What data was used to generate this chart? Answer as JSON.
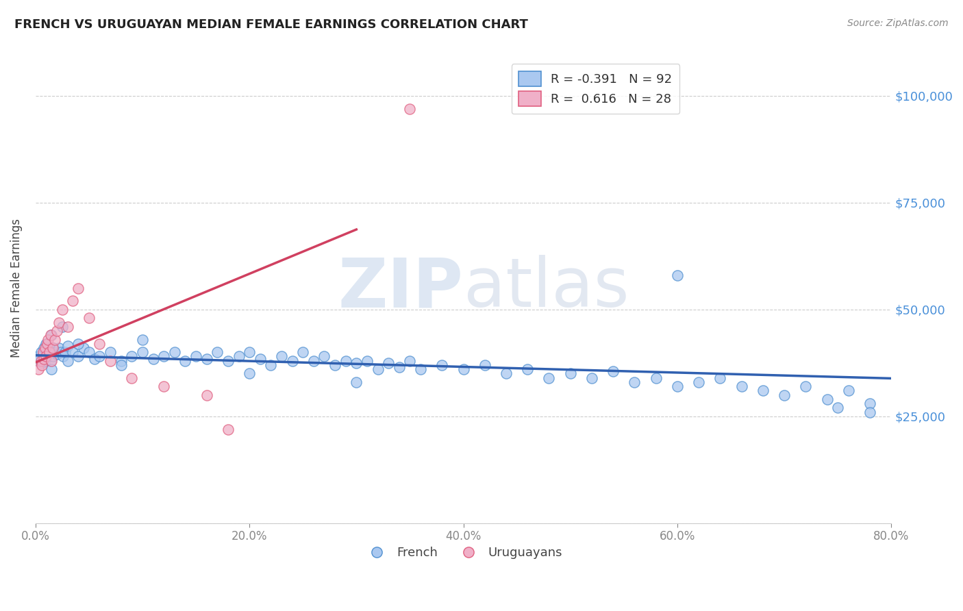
{
  "title": "FRENCH VS URUGUAYAN MEDIAN FEMALE EARNINGS CORRELATION CHART",
  "source": "Source: ZipAtlas.com",
  "ylabel": "Median Female Earnings",
  "xlim": [
    0.0,
    0.8
  ],
  "ylim": [
    0,
    110000
  ],
  "yticks": [
    0,
    25000,
    50000,
    75000,
    100000
  ],
  "ytick_labels": [
    "",
    "$25,000",
    "$50,000",
    "$75,000",
    "$100,000"
  ],
  "xticks": [
    0.0,
    0.2,
    0.4,
    0.6,
    0.8
  ],
  "xtick_labels": [
    "0.0%",
    "20.0%",
    "40.0%",
    "60.0%",
    "80.0%"
  ],
  "french_R": -0.391,
  "french_N": 92,
  "uruguayan_R": 0.616,
  "uruguayan_N": 28,
  "french_color": "#aac8f0",
  "french_edge_color": "#5090d0",
  "uruguayan_color": "#f0b0c8",
  "uruguayan_edge_color": "#e06080",
  "french_line_color": "#3060b0",
  "uruguayan_line_color": "#d04060",
  "watermark_zip": "ZIP",
  "watermark_atlas": "atlas",
  "title_color": "#222222",
  "source_color": "#888888",
  "axis_color": "#4a90d9",
  "tick_color": "#888888",
  "grid_color": "#cccccc",
  "french_x": [
    0.002,
    0.003,
    0.004,
    0.005,
    0.006,
    0.007,
    0.008,
    0.009,
    0.01,
    0.011,
    0.012,
    0.013,
    0.014,
    0.015,
    0.016,
    0.017,
    0.018,
    0.02,
    0.022,
    0.024,
    0.026,
    0.028,
    0.03,
    0.035,
    0.04,
    0.045,
    0.05,
    0.055,
    0.06,
    0.07,
    0.08,
    0.09,
    0.1,
    0.11,
    0.12,
    0.13,
    0.14,
    0.15,
    0.16,
    0.17,
    0.18,
    0.19,
    0.2,
    0.21,
    0.22,
    0.23,
    0.24,
    0.25,
    0.26,
    0.27,
    0.28,
    0.29,
    0.3,
    0.31,
    0.32,
    0.33,
    0.34,
    0.35,
    0.36,
    0.38,
    0.4,
    0.42,
    0.44,
    0.46,
    0.48,
    0.5,
    0.52,
    0.54,
    0.56,
    0.58,
    0.6,
    0.62,
    0.64,
    0.66,
    0.68,
    0.7,
    0.72,
    0.74,
    0.76,
    0.78,
    0.015,
    0.025,
    0.6,
    0.015,
    0.03,
    0.04,
    0.08,
    0.1,
    0.2,
    0.3,
    0.75,
    0.78
  ],
  "french_y": [
    38000,
    39000,
    38500,
    40000,
    37500,
    39500,
    41000,
    38000,
    42000,
    40000,
    39000,
    41000,
    38000,
    40500,
    39000,
    41000,
    40000,
    39500,
    41000,
    40000,
    39000,
    40000,
    41500,
    40000,
    39000,
    41000,
    40000,
    38500,
    39000,
    40000,
    38000,
    39000,
    40000,
    38500,
    39000,
    40000,
    38000,
    39000,
    38500,
    40000,
    38000,
    39000,
    40000,
    38500,
    37000,
    39000,
    38000,
    40000,
    38000,
    39000,
    37000,
    38000,
    37500,
    38000,
    36000,
    37500,
    36500,
    38000,
    36000,
    37000,
    36000,
    37000,
    35000,
    36000,
    34000,
    35000,
    34000,
    35500,
    33000,
    34000,
    32000,
    33000,
    34000,
    32000,
    31000,
    30000,
    32000,
    29000,
    31000,
    28000,
    44000,
    46000,
    58000,
    36000,
    38000,
    42000,
    37000,
    43000,
    35000,
    33000,
    27000,
    26000
  ],
  "uruguayan_x": [
    0.003,
    0.005,
    0.006,
    0.007,
    0.008,
    0.009,
    0.01,
    0.011,
    0.012,
    0.013,
    0.014,
    0.015,
    0.016,
    0.018,
    0.02,
    0.022,
    0.025,
    0.03,
    0.035,
    0.04,
    0.05,
    0.06,
    0.07,
    0.09,
    0.12,
    0.16,
    0.18,
    0.35
  ],
  "uruguayan_y": [
    36000,
    38000,
    37000,
    40000,
    38500,
    41000,
    39000,
    42000,
    43000,
    40000,
    44000,
    38000,
    41000,
    43000,
    45000,
    47000,
    50000,
    46000,
    52000,
    55000,
    48000,
    42000,
    38000,
    34000,
    32000,
    30000,
    22000,
    97000
  ]
}
